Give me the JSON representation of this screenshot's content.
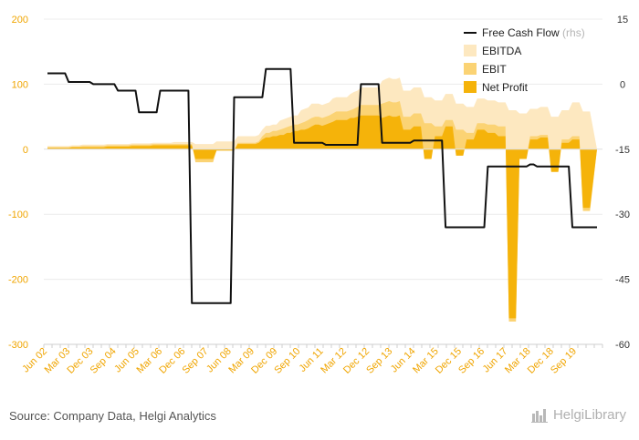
{
  "chart_data": {
    "type": "area",
    "x_tick_labels": [
      "Jun 02",
      "Mar 03",
      "Dec 03",
      "Sep 04",
      "Jun 05",
      "Mar 06",
      "Dec 06",
      "Sep 07",
      "Jun 08",
      "Mar 09",
      "Dec 09",
      "Sep 10",
      "Jun 11",
      "Mar 12",
      "Dec 12",
      "Sep 13",
      "Jun 14",
      "Mar 15",
      "Dec 15",
      "Sep 16",
      "Jun 17",
      "Mar 18",
      "Dec 18",
      "Sep 19"
    ],
    "y_left": {
      "ylim": [
        -300,
        200
      ],
      "ticks": [
        200,
        100,
        0,
        -100,
        -200,
        -300
      ]
    },
    "y_right": {
      "ylim": [
        -60,
        15
      ],
      "ticks": [
        15,
        0,
        -15,
        -30,
        -45,
        -60
      ]
    },
    "series": [
      {
        "name": "Free Cash Flow",
        "suffix": "(rhs)",
        "type": "line",
        "axis": "right",
        "color": "#111111",
        "values": [
          2.5,
          2.5,
          2.5,
          2.5,
          2.5,
          2.5,
          0.5,
          0.5,
          0.5,
          0.5,
          0.5,
          0.5,
          0.5,
          0,
          0,
          0,
          0,
          0,
          0,
          0,
          -1.5,
          -1.5,
          -1.5,
          -1.5,
          -1.5,
          -1.5,
          -6.5,
          -6.5,
          -6.5,
          -6.5,
          -6.5,
          -6.5,
          -1.5,
          -1.5,
          -1.5,
          -1.5,
          -1.5,
          -1.5,
          -1.5,
          -1.5,
          -1.5,
          -50.5,
          -50.5,
          -50.5,
          -50.5,
          -50.5,
          -50.5,
          -50.5,
          -50.5,
          -50.5,
          -50.5,
          -50.5,
          -50.5,
          -3,
          -3,
          -3,
          -3,
          -3,
          -3,
          -3,
          -3,
          -3,
          3.5,
          3.5,
          3.5,
          3.5,
          3.5,
          3.5,
          3.5,
          3.5,
          -13.5,
          -13.5,
          -13.5,
          -13.5,
          -13.5,
          -13.5,
          -13.5,
          -13.5,
          -13.5,
          -14,
          -14,
          -14,
          -14,
          -14,
          -14,
          -14,
          -14,
          -14,
          -14,
          0,
          0,
          0,
          0,
          0,
          0,
          -13.5,
          -13.5,
          -13.5,
          -13.5,
          -13.5,
          -13.5,
          -13.5,
          -13.5,
          -13.5,
          -13,
          -13,
          -13,
          -13,
          -13,
          -13,
          -13,
          -13,
          -13,
          -33,
          -33,
          -33,
          -33,
          -33,
          -33,
          -33,
          -33,
          -33,
          -33,
          -33,
          -33,
          -19,
          -19,
          -19,
          -19,
          -19,
          -19,
          -19,
          -19,
          -19,
          -19,
          -19,
          -19,
          -18.5,
          -18.5,
          -19,
          -19,
          -19,
          -19,
          -19,
          -19,
          -19,
          -19,
          -19,
          -19,
          -33,
          -33,
          -33,
          -33,
          -33,
          -33,
          -33,
          -33
        ]
      },
      {
        "name": "EBITDA",
        "type": "area",
        "axis": "left",
        "color": "#fde8c0",
        "values": [
          5,
          5,
          5,
          5,
          5,
          5,
          5,
          6,
          6,
          6,
          7,
          7,
          7,
          7,
          7,
          7,
          7,
          8,
          8,
          8,
          8,
          8,
          8,
          8,
          9,
          9,
          9,
          9,
          9,
          9,
          10,
          10,
          10,
          10,
          10,
          10,
          11,
          11,
          11,
          11,
          11,
          11,
          8,
          8,
          8,
          8,
          8,
          8,
          12,
          12,
          12,
          12,
          12,
          12,
          20,
          20,
          20,
          20,
          20,
          20,
          22,
          30,
          36,
          36,
          38,
          38,
          44,
          46,
          48,
          50,
          52,
          52,
          60,
          62,
          64,
          70,
          70,
          70,
          68,
          70,
          72,
          78,
          80,
          80,
          80,
          80,
          85,
          88,
          90,
          95,
          95,
          95,
          95,
          95,
          95,
          105,
          108,
          110,
          108,
          108,
          110,
          90,
          90,
          90,
          95,
          95,
          95,
          80,
          80,
          80,
          75,
          75,
          75,
          85,
          85,
          85,
          70,
          70,
          70,
          65,
          65,
          65,
          78,
          78,
          78,
          75,
          75,
          75,
          72,
          72,
          72,
          60,
          60,
          60,
          55,
          55,
          55,
          62,
          62,
          62,
          65,
          65,
          65,
          50,
          50,
          50,
          60,
          60,
          60,
          72,
          72,
          72,
          58,
          58,
          58
        ]
      },
      {
        "name": "EBIT",
        "type": "area",
        "axis": "left",
        "color": "#fbd374",
        "values": [
          3,
          3,
          3,
          3,
          3,
          3,
          3,
          4,
          4,
          4,
          5,
          5,
          5,
          5,
          5,
          5,
          5,
          6,
          6,
          6,
          6,
          6,
          6,
          6,
          7,
          7,
          7,
          7,
          7,
          7,
          8,
          8,
          8,
          8,
          8,
          8,
          8,
          8,
          8,
          8,
          8,
          8,
          -20,
          -20,
          -20,
          -20,
          -20,
          -20,
          -2,
          -2,
          -2,
          -2,
          -2,
          -2,
          10,
          10,
          10,
          10,
          10,
          10,
          12,
          20,
          25,
          25,
          28,
          28,
          30,
          32,
          34,
          36,
          38,
          38,
          40,
          42,
          45,
          48,
          50,
          50,
          48,
          50,
          52,
          55,
          58,
          58,
          58,
          58,
          60,
          62,
          65,
          68,
          68,
          68,
          68,
          68,
          68,
          70,
          72,
          74,
          72,
          72,
          74,
          50,
          50,
          50,
          55,
          55,
          55,
          40,
          40,
          40,
          35,
          35,
          35,
          45,
          45,
          45,
          30,
          30,
          30,
          25,
          25,
          25,
          40,
          40,
          40,
          38,
          38,
          38,
          35,
          35,
          35,
          -265,
          -265,
          -265,
          -10,
          -10,
          -10,
          20,
          20,
          20,
          22,
          22,
          22,
          -30,
          -30,
          -30,
          15,
          15,
          15,
          20,
          20,
          20,
          -95,
          -95,
          -95
        ]
      },
      {
        "name": "Net Profit",
        "type": "area",
        "axis": "left",
        "color": "#f5b30a",
        "values": [
          2,
          2,
          2,
          2,
          2,
          2,
          2,
          3,
          3,
          3,
          3,
          3,
          3,
          3,
          3,
          3,
          3,
          4,
          4,
          4,
          4,
          4,
          4,
          4,
          5,
          5,
          5,
          5,
          5,
          5,
          6,
          6,
          6,
          6,
          6,
          6,
          6,
          6,
          6,
          6,
          6,
          6,
          -15,
          -15,
          -15,
          -15,
          -15,
          -15,
          -2,
          -2,
          -2,
          -2,
          -2,
          -2,
          8,
          8,
          8,
          8,
          8,
          8,
          10,
          15,
          18,
          18,
          20,
          20,
          22,
          22,
          25,
          25,
          28,
          28,
          30,
          30,
          32,
          35,
          38,
          38,
          36,
          38,
          40,
          42,
          45,
          45,
          45,
          45,
          48,
          48,
          50,
          52,
          52,
          52,
          52,
          52,
          52,
          48,
          50,
          52,
          50,
          50,
          52,
          30,
          30,
          30,
          35,
          35,
          35,
          -15,
          -15,
          -15,
          20,
          20,
          20,
          35,
          35,
          35,
          -10,
          -10,
          -10,
          15,
          15,
          15,
          30,
          30,
          30,
          25,
          25,
          25,
          20,
          20,
          20,
          -260,
          -260,
          -260,
          -15,
          -15,
          -15,
          15,
          15,
          15,
          18,
          18,
          18,
          -35,
          -35,
          -35,
          10,
          10,
          10,
          15,
          15,
          15,
          -90,
          -90,
          -90
        ]
      }
    ],
    "legend_position": "top-right",
    "grid": true
  },
  "footer": {
    "source": "Source: Company Data, Helgi Analytics",
    "logo_text": "HelgiLibrary"
  }
}
